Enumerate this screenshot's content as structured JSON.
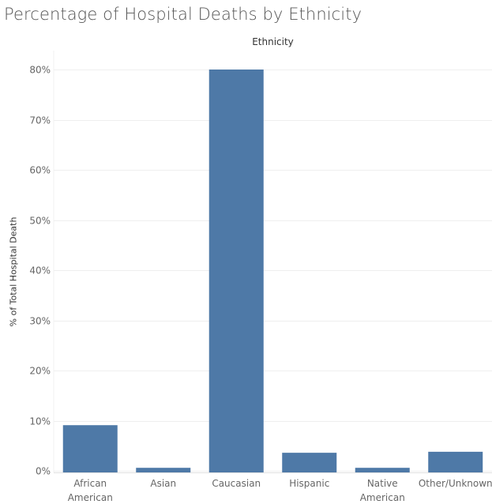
{
  "chart_data": {
    "type": "bar",
    "title": "Percentage of Hospital Deaths by Ethnicity",
    "column_header": "Ethnicity",
    "ylabel": "% of Total Hospital Death",
    "xlabel": "",
    "categories": [
      [
        "African",
        "American"
      ],
      [
        "Asian"
      ],
      [
        "Caucasian"
      ],
      [
        "Hispanic"
      ],
      [
        "Native",
        "American"
      ],
      [
        "Other/Unknown"
      ]
    ],
    "values": [
      9.1,
      0.6,
      80.0,
      3.6,
      0.6,
      3.8
    ],
    "ylim": [
      0,
      80
    ],
    "yticks": [
      0,
      10,
      20,
      30,
      40,
      50,
      60,
      70,
      80
    ],
    "ytick_labels": [
      "0%",
      "10%",
      "20%",
      "30%",
      "40%",
      "50%",
      "60%",
      "70%",
      "80%"
    ],
    "bar_color": "#4e79a7",
    "grid": true,
    "grid_color": "#efefef"
  }
}
